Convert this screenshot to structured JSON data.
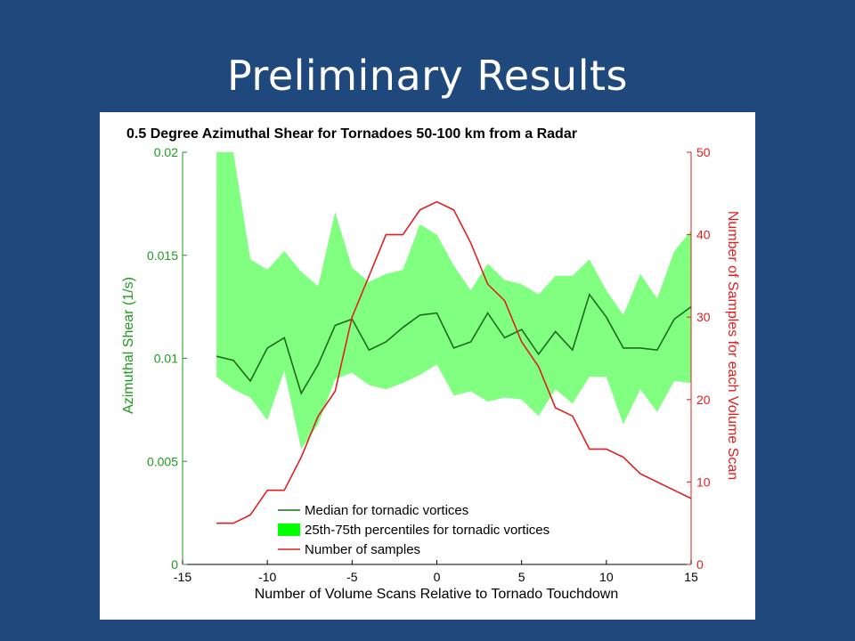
{
  "slide": {
    "title": "Preliminary Results"
  },
  "colors": {
    "background": "#1f497d",
    "green_axis": "#1e9a1e",
    "fill": "#80ff80",
    "median": "#1b6b1b",
    "samples": "#e02020"
  },
  "chart_data": {
    "type": "line",
    "title": "0.5 Degree Azimuthal Shear for Tornadoes 50-100 km from a Radar",
    "xlabel": "Number of Volume Scans Relative to Tornado Touchdown",
    "ylabel_left": "Azimuthal Shear (1/s)",
    "ylabel_right": "Number of Samples for each Volume Scan",
    "xlim": [
      -15,
      15
    ],
    "ylim_left": [
      0,
      0.02
    ],
    "ylim_right": [
      0,
      50
    ],
    "x_ticks": [
      "-15",
      "-10",
      "-5",
      "0",
      "5",
      "10",
      "15"
    ],
    "y_left_ticks": [
      "0",
      "0.005",
      "0.01",
      "0.015",
      "0.02"
    ],
    "y_right_ticks": [
      "0",
      "10",
      "20",
      "30",
      "40",
      "50"
    ],
    "x": [
      -13,
      -12,
      -11,
      -10,
      -9,
      -8,
      -7,
      -6,
      -5,
      -4,
      -3,
      -2,
      -1,
      0,
      1,
      2,
      3,
      4,
      5,
      6,
      7,
      8,
      9,
      10,
      11,
      12,
      13,
      14,
      15
    ],
    "series": [
      {
        "name": "Median for tornadic vortices",
        "axis": "left",
        "values": [
          0.0101,
          0.0099,
          0.0089,
          0.0105,
          0.011,
          0.0083,
          0.0097,
          0.0116,
          0.0119,
          0.0104,
          0.0108,
          0.0115,
          0.0121,
          0.0122,
          0.0105,
          0.0108,
          0.0122,
          0.011,
          0.0114,
          0.0102,
          0.0113,
          0.0104,
          0.0131,
          0.012,
          0.0105,
          0.0105,
          0.0104,
          0.0119,
          0.0125
        ]
      },
      {
        "name": "25th-75th percentiles for tornadic vortices",
        "axis": "left",
        "lower": [
          0.0091,
          0.0085,
          0.0081,
          0.007,
          0.0094,
          0.0056,
          0.0068,
          0.009,
          0.0093,
          0.0087,
          0.0085,
          0.0088,
          0.0092,
          0.0097,
          0.0082,
          0.0084,
          0.0079,
          0.0081,
          0.008,
          0.0072,
          0.0085,
          0.0078,
          0.0091,
          0.0091,
          0.0068,
          0.0085,
          0.0074,
          0.0089,
          0.0088
        ],
        "upper": [
          0.02,
          0.02,
          0.0148,
          0.0143,
          0.0152,
          0.0142,
          0.0135,
          0.0171,
          0.0144,
          0.0137,
          0.0141,
          0.0143,
          0.0165,
          0.016,
          0.0145,
          0.0133,
          0.0146,
          0.0138,
          0.0136,
          0.0131,
          0.014,
          0.014,
          0.0148,
          0.0133,
          0.0121,
          0.0141,
          0.0129,
          0.0152,
          0.0162
        ]
      },
      {
        "name": "Number of samples",
        "axis": "right",
        "values": [
          5,
          5,
          6,
          9,
          9,
          13,
          18,
          21,
          30,
          35,
          40,
          40,
          43,
          44,
          43,
          39,
          34,
          32,
          27,
          24,
          19,
          18,
          14,
          14,
          13,
          11,
          10,
          9,
          8
        ]
      }
    ],
    "legend": {
      "placement": "bottom-left",
      "entries": [
        "Median for tornadic vortices",
        "25th-75th percentiles for tornadic vortices",
        "Number of samples"
      ]
    }
  }
}
